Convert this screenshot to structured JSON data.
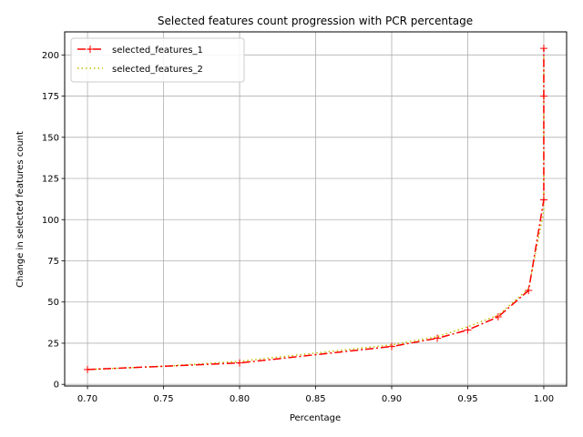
{
  "chart_data": {
    "type": "line",
    "title": "Selected features count progression with PCR percentage",
    "xlabel": "Percentage",
    "ylabel": "Change in selected features count",
    "xlim": [
      0.685,
      1.015
    ],
    "ylim": [
      -1,
      214
    ],
    "xticks": [
      0.7,
      0.75,
      0.8,
      0.85,
      0.9,
      0.95,
      1.0
    ],
    "xtick_labels": [
      "0.70",
      "0.75",
      "0.80",
      "0.85",
      "0.90",
      "0.95",
      "1.00"
    ],
    "yticks": [
      0,
      25,
      50,
      75,
      100,
      125,
      150,
      175,
      200
    ],
    "ytick_labels": [
      "0",
      "25",
      "50",
      "75",
      "100",
      "125",
      "150",
      "175",
      "200"
    ],
    "grid": true,
    "legend_position": "top-left",
    "series": [
      {
        "name": "selected_features_1",
        "color": "#ff0000",
        "style": "dashdot",
        "marker": "plus",
        "x": [
          0.7,
          0.8,
          0.9,
          0.93,
          0.95,
          0.97,
          0.99,
          1.0,
          1.0,
          1.0
        ],
        "y": [
          9,
          13,
          23,
          28,
          33,
          41,
          57,
          112,
          175,
          204
        ]
      },
      {
        "name": "selected_features_2",
        "color": "#bfbf00",
        "style": "dotted",
        "marker": "none",
        "x": [
          0.7,
          0.75,
          0.8,
          0.85,
          0.9,
          0.93,
          0.95,
          0.97,
          0.99,
          1.0,
          1.0,
          1.0
        ],
        "y": [
          9,
          11,
          14,
          19,
          24,
          29,
          35,
          42,
          58,
          105,
          150,
          200
        ]
      }
    ]
  }
}
